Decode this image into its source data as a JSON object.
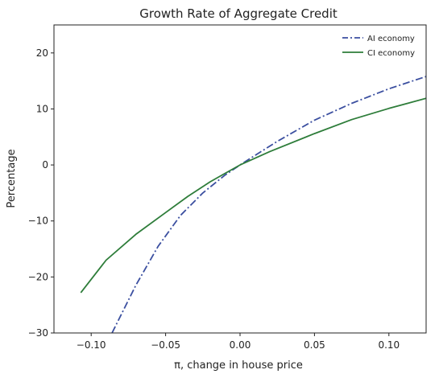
{
  "chart_data": {
    "type": "line",
    "title": "Growth Rate of Aggregate Credit",
    "xlabel": "π, change in house price",
    "ylabel": "Percentage",
    "xlim": [
      -0.125,
      0.125
    ],
    "ylim": [
      -30,
      25
    ],
    "xticks": [
      -0.1,
      -0.05,
      0.0,
      0.05,
      0.1
    ],
    "xtick_labels": [
      "−0.10",
      "−0.05",
      "0.00",
      "0.05",
      "0.10"
    ],
    "yticks": [
      -30,
      -20,
      -10,
      0,
      10,
      20
    ],
    "ytick_labels": [
      "−30",
      "−20",
      "−10",
      "0",
      "10",
      "20"
    ],
    "grid": false,
    "legend_position": "top-right",
    "series": [
      {
        "name": "AI economy",
        "color": "#3b4fa0",
        "style": "dashdot",
        "x": [
          -0.086,
          -0.07,
          -0.055,
          -0.04,
          -0.025,
          -0.01,
          0.0,
          0.01,
          0.025,
          0.05,
          0.075,
          0.1,
          0.125
        ],
        "y": [
          -30,
          -21.5,
          -14.5,
          -9.0,
          -5.0,
          -1.8,
          0.0,
          1.7,
          4.2,
          8.0,
          11.0,
          13.6,
          15.8
        ]
      },
      {
        "name": "CI economy",
        "color": "#2e7d3a",
        "style": "solid",
        "x": [
          -0.107,
          -0.09,
          -0.07,
          -0.05,
          -0.035,
          -0.02,
          -0.01,
          0.0,
          0.02,
          0.05,
          0.075,
          0.1,
          0.125
        ],
        "y": [
          -22.8,
          -17.0,
          -12.4,
          -8.5,
          -5.6,
          -3.0,
          -1.5,
          0.0,
          2.4,
          5.6,
          8.1,
          10.1,
          11.9
        ]
      }
    ]
  }
}
